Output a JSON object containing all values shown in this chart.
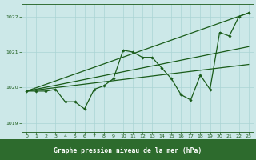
{
  "title": "Graphe pression niveau de la mer (hPa)",
  "bg_color": "#cce8e8",
  "label_bg": "#2d6b2d",
  "grid_color": "#aad4d4",
  "line_color": "#1a5c1a",
  "xlim": [
    -0.5,
    23.5
  ],
  "ylim": [
    1018.75,
    1022.35
  ],
  "yticks": [
    1019,
    1020,
    1021,
    1022
  ],
  "xticks": [
    0,
    1,
    2,
    3,
    4,
    5,
    6,
    7,
    8,
    9,
    10,
    11,
    12,
    13,
    14,
    15,
    16,
    17,
    18,
    19,
    20,
    21,
    22,
    23
  ],
  "series_main": {
    "x": [
      0,
      1,
      2,
      3,
      4,
      5,
      6,
      7,
      8,
      9,
      10,
      11,
      12,
      13,
      14,
      15,
      16,
      17,
      18,
      19,
      20,
      21,
      22,
      23
    ],
    "y": [
      1019.9,
      1019.9,
      1019.9,
      1019.95,
      1019.6,
      1019.6,
      1019.4,
      1019.95,
      1020.05,
      1020.25,
      1021.05,
      1021.0,
      1020.85,
      1020.85,
      1020.55,
      1020.25,
      1019.8,
      1019.65,
      1020.35,
      1019.95,
      1021.55,
      1021.45,
      1022.0,
      1022.1
    ]
  },
  "trend1": {
    "x": [
      0,
      23
    ],
    "y": [
      1019.9,
      1022.1
    ]
  },
  "trend2": {
    "x": [
      0,
      23
    ],
    "y": [
      1019.9,
      1021.15
    ]
  },
  "trend3": {
    "x": [
      0,
      23
    ],
    "y": [
      1019.9,
      1020.65
    ]
  }
}
